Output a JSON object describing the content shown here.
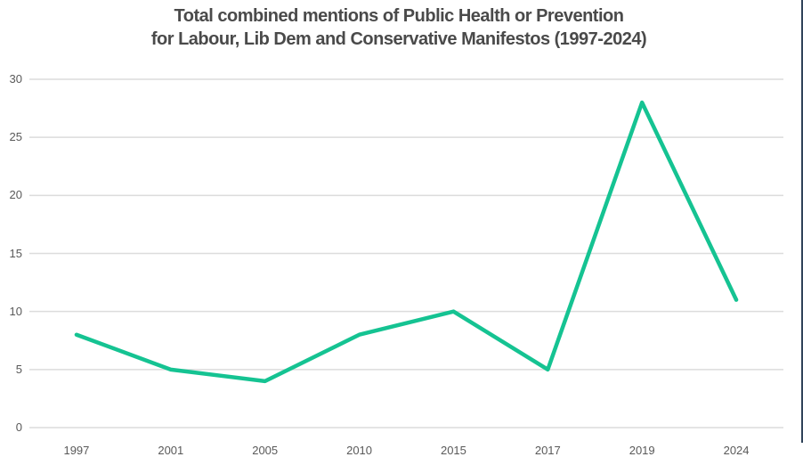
{
  "chart_data": {
    "type": "line",
    "title_lines": [
      "Total combined mentions of Public Health or Prevention",
      "for Labour, Lib Dem and Conservative Manifestos (1997-2024)"
    ],
    "categories": [
      "1997",
      "2001",
      "2005",
      "2010",
      "2015",
      "2017",
      "2019",
      "2024"
    ],
    "series": [
      {
        "name": "Total combined mentions",
        "values": [
          8,
          5,
          4,
          8,
          10,
          5,
          28,
          11
        ]
      }
    ],
    "xlabel": "",
    "ylabel": "",
    "ylim": [
      0,
      30
    ],
    "yticks": [
      0,
      5,
      10,
      15,
      20,
      25,
      30
    ],
    "grid": true,
    "legend_position": "none",
    "colors": {
      "line": "#15c392",
      "gridline": "#dcdcdc",
      "tick_label": "#595959",
      "title": "#4a4a4a",
      "background": "#ffffff",
      "edge_border": "#30445a"
    }
  }
}
